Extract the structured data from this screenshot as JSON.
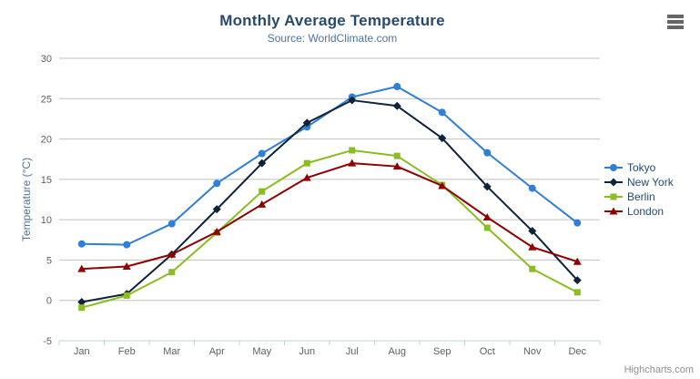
{
  "header": {
    "title": "Monthly Average Temperature",
    "subtitle": "Source: WorldClimate.com"
  },
  "chart_data": {
    "type": "line",
    "categories": [
      "Jan",
      "Feb",
      "Mar",
      "Apr",
      "May",
      "Jun",
      "Jul",
      "Aug",
      "Sep",
      "Oct",
      "Nov",
      "Dec"
    ],
    "series": [
      {
        "name": "Tokyo",
        "color": "#2f7ed8",
        "marker": "circle",
        "values": [
          7.0,
          6.9,
          9.5,
          14.5,
          18.2,
          21.5,
          25.2,
          26.5,
          23.3,
          18.3,
          13.9,
          9.6
        ]
      },
      {
        "name": "New York",
        "color": "#0d233a",
        "marker": "diamond",
        "values": [
          -0.2,
          0.8,
          5.7,
          11.3,
          17.0,
          22.0,
          24.8,
          24.1,
          20.1,
          14.1,
          8.6,
          2.5
        ]
      },
      {
        "name": "Berlin",
        "color": "#8bbc21",
        "marker": "square",
        "values": [
          -0.9,
          0.6,
          3.5,
          8.4,
          13.5,
          17.0,
          18.6,
          17.9,
          14.3,
          9.0,
          3.9,
          1.0
        ]
      },
      {
        "name": "London",
        "color": "#910000",
        "marker": "triangle",
        "values": [
          3.9,
          4.2,
          5.7,
          8.5,
          11.9,
          15.2,
          17.0,
          16.6,
          14.2,
          10.3,
          6.6,
          4.8
        ]
      }
    ],
    "title": "Monthly Average Temperature",
    "subtitle": "Source: WorldClimate.com",
    "xlabel": "",
    "ylabel": "Temperature (°C)",
    "ylim": [
      -5,
      30
    ],
    "ytick_step": 5,
    "grid": true,
    "legend_position": "right"
  },
  "colors": {
    "title": "#274b6d",
    "subtitle": "#4d759e",
    "axis_label": "#606060",
    "axis_title": "#4d759e",
    "grid": "#c0c0c0",
    "axis_line": "#c0d0e0",
    "legend_text": "#274b6d",
    "credits": "#909090",
    "menu_icon": "#666666"
  },
  "menu": {
    "icon": "hamburger-icon"
  },
  "credits": {
    "label": "Highcharts.com"
  }
}
